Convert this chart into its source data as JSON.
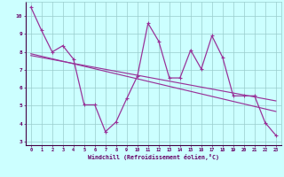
{
  "xlabel": "Windchill (Refroidissement éolien,°C)",
  "x": [
    0,
    1,
    2,
    3,
    4,
    5,
    6,
    7,
    8,
    9,
    10,
    11,
    12,
    13,
    14,
    15,
    16,
    17,
    18,
    19,
    20,
    21,
    22,
    23
  ],
  "wavy": [
    10.5,
    9.2,
    8.0,
    8.35,
    7.6,
    5.05,
    5.05,
    3.55,
    4.1,
    5.4,
    6.65,
    9.6,
    8.6,
    6.55,
    6.55,
    8.1,
    7.05,
    8.9,
    7.7,
    5.55,
    5.55,
    5.55,
    4.05,
    3.35
  ],
  "trend1_y": [
    7.9,
    7.76,
    7.62,
    7.48,
    7.34,
    7.2,
    7.06,
    6.92,
    6.78,
    6.64,
    6.5,
    6.36,
    6.22,
    6.08,
    5.94,
    5.8,
    5.66,
    5.52,
    5.38,
    5.24,
    5.1,
    4.96,
    4.82,
    4.68
  ],
  "trend2_y": [
    7.8,
    7.69,
    7.58,
    7.47,
    7.36,
    7.25,
    7.14,
    7.03,
    6.92,
    6.81,
    6.7,
    6.59,
    6.48,
    6.37,
    6.26,
    6.15,
    6.04,
    5.93,
    5.82,
    5.71,
    5.6,
    5.49,
    5.38,
    5.27
  ],
  "ylim": [
    2.8,
    10.8
  ],
  "xlim": [
    -0.5,
    23.5
  ],
  "yticks": [
    3,
    4,
    5,
    6,
    7,
    8,
    9,
    10
  ],
  "xticks": [
    0,
    1,
    2,
    3,
    4,
    5,
    6,
    7,
    8,
    9,
    10,
    11,
    12,
    13,
    14,
    15,
    16,
    17,
    18,
    19,
    20,
    21,
    22,
    23
  ],
  "line_color": "#993399",
  "bg_color": "#ccffff",
  "grid_color": "#99cccc",
  "axis_color": "#660066",
  "label_color": "#660066"
}
